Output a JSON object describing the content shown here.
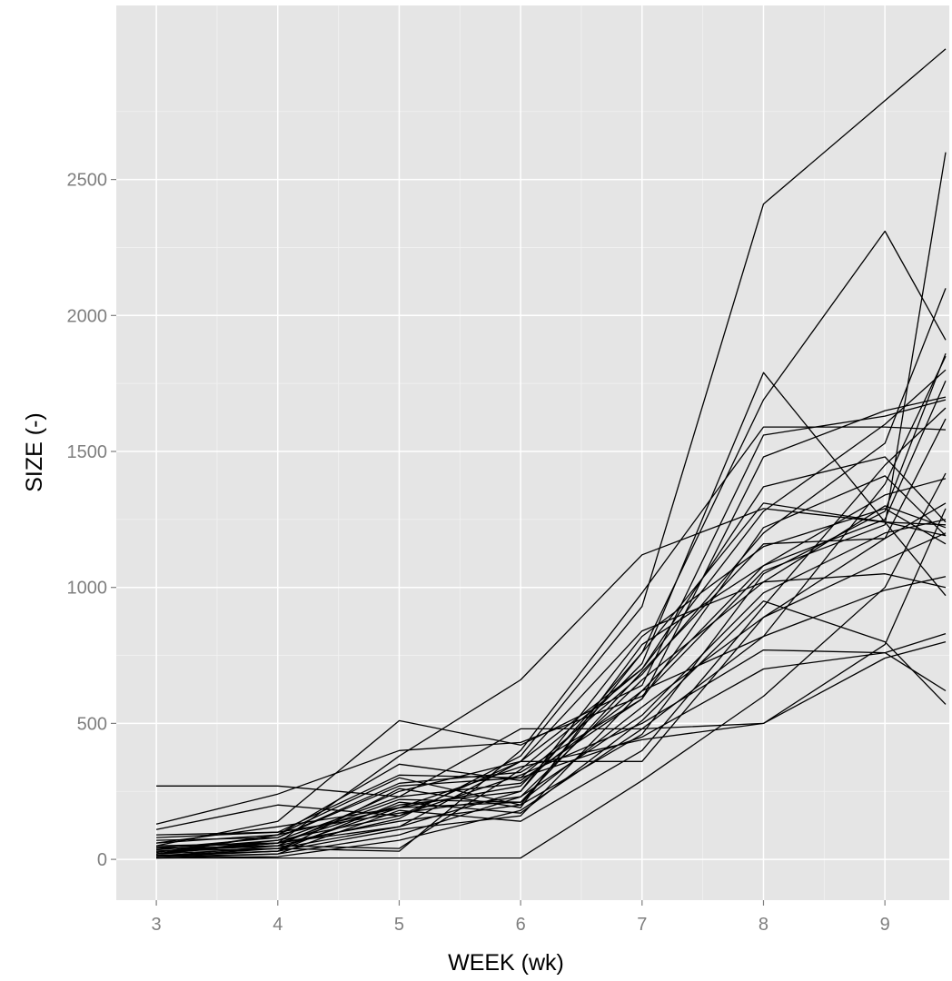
{
  "chart_data": {
    "type": "line",
    "title": "",
    "xlabel": "WEEK (wk)",
    "ylabel": "SIZE (-)",
    "xlim": [
      2.67,
      9.53
    ],
    "ylim": [
      -150,
      3140
    ],
    "x_ticks": [
      3,
      4,
      5,
      6,
      7,
      8,
      9
    ],
    "y_ticks": [
      0,
      500,
      1000,
      1500,
      2000,
      2500
    ],
    "x_tick_labels": [
      "3",
      "4",
      "5",
      "6",
      "7",
      "8",
      "9"
    ],
    "y_tick_labels": [
      "0",
      "500",
      "1000",
      "1500",
      "2000",
      "2500"
    ],
    "grid": true,
    "legend": "none",
    "colors": {
      "panel": "#e5e5e5",
      "grid_major": "#ffffff",
      "grid_minor": "#f2f2f2",
      "line": "#000000",
      "tick_text": "#7f7f7f"
    },
    "x": [
      3,
      4,
      5,
      6,
      7,
      8,
      9,
      9.5
    ],
    "series": [
      {
        "values": [
          20,
          60,
          380,
          660,
          1120,
          1290,
          1240,
          1230
        ]
      },
      {
        "values": [
          10,
          50,
          150,
          380,
          930,
          2410,
          2790,
          2980
        ]
      },
      {
        "values": [
          270,
          270,
          230,
          480,
          480,
          500,
          740,
          800
        ]
      },
      {
        "values": [
          30,
          40,
          30,
          400,
          980,
          1590,
          1590,
          1580
        ]
      },
      {
        "values": [
          60,
          120,
          190,
          270,
          720,
          1790,
          1240,
          970
        ]
      },
      {
        "values": [
          20,
          60,
          120,
          250,
          760,
          1690,
          2310,
          1910
        ]
      },
      {
        "values": [
          130,
          240,
          400,
          430,
          600,
          1060,
          1230,
          2600
        ]
      },
      {
        "values": [
          50,
          140,
          510,
          420,
          640,
          1560,
          1630,
          1690
        ]
      },
      {
        "values": [
          10,
          30,
          210,
          170,
          510,
          950,
          800,
          570
        ]
      },
      {
        "values": [
          5,
          5,
          5,
          5,
          290,
          600,
          1000,
          1420
        ]
      },
      {
        "values": [
          80,
          100,
          310,
          300,
          680,
          1200,
          1530,
          2100
        ]
      },
      {
        "values": [
          40,
          50,
          40,
          330,
          700,
          1370,
          1480,
          1240
        ]
      },
      {
        "values": [
          15,
          30,
          260,
          190,
          790,
          1080,
          1250,
          1760
        ]
      },
      {
        "values": [
          25,
          90,
          190,
          210,
          560,
          890,
          1100,
          1200
        ]
      },
      {
        "values": [
          110,
          200,
          160,
          310,
          500,
          770,
          760,
          620
        ]
      },
      {
        "values": [
          35,
          70,
          230,
          280,
          620,
          820,
          990,
          1040
        ]
      },
      {
        "values": [
          45,
          60,
          140,
          200,
          460,
          1050,
          1280,
          1860
        ]
      },
      {
        "values": [
          5,
          20,
          90,
          230,
          660,
          1020,
          1050,
          1000
        ]
      },
      {
        "values": [
          60,
          90,
          350,
          290,
          590,
          1220,
          1410,
          1190
        ]
      },
      {
        "values": [
          20,
          40,
          120,
          360,
          700,
          1280,
          1600,
          1800
        ]
      },
      {
        "values": [
          10,
          20,
          180,
          140,
          400,
          930,
          1450,
          1660
        ]
      },
      {
        "values": [
          70,
          80,
          270,
          300,
          450,
          700,
          760,
          830
        ]
      },
      {
        "values": [
          30,
          60,
          200,
          250,
          820,
          1150,
          1290,
          1160
        ]
      },
      {
        "values": [
          20,
          70,
          160,
          360,
          360,
          890,
          1180,
          1310
        ]
      },
      {
        "values": [
          90,
          100,
          170,
          230,
          530,
          980,
          1200,
          1250
        ]
      },
      {
        "values": [
          15,
          30,
          110,
          160,
          620,
          1080,
          1340,
          1400
        ]
      },
      {
        "values": [
          40,
          80,
          280,
          320,
          590,
          1480,
          1650,
          1700
        ]
      },
      {
        "values": [
          10,
          40,
          190,
          340,
          440,
          500,
          790,
          1290
        ]
      },
      {
        "values": [
          50,
          60,
          220,
          210,
          690,
          1160,
          1180,
          1620
        ]
      },
      {
        "values": [
          20,
          90,
          300,
          200,
          760,
          1310,
          1240,
          1190
        ]
      },
      {
        "values": [
          5,
          10,
          70,
          180,
          480,
          820,
          1380,
          1850
        ]
      },
      {
        "values": [
          30,
          50,
          250,
          360,
          840,
          1020,
          1300,
          1220
        ]
      }
    ]
  }
}
